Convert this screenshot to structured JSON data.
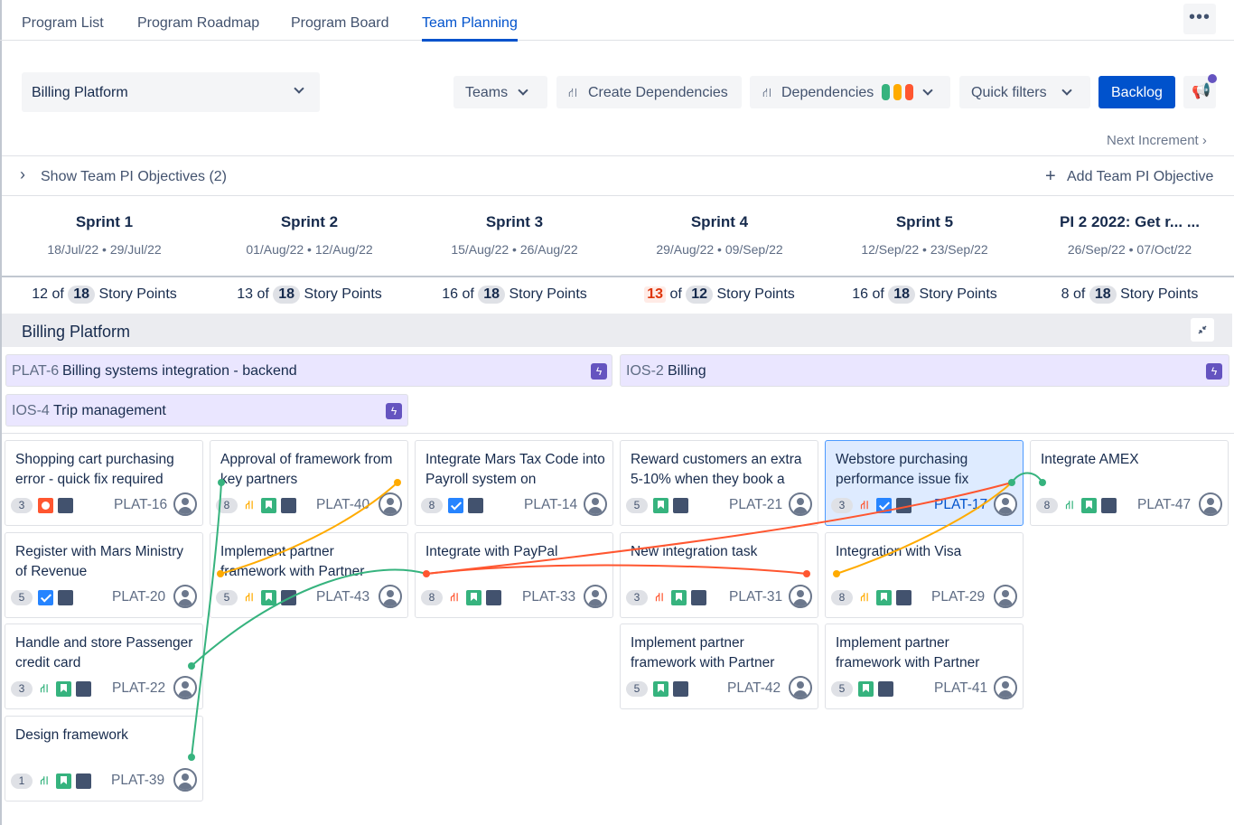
{
  "nav": {
    "tabs": [
      "Program List",
      "Program Roadmap",
      "Program Board",
      "Team Planning"
    ],
    "more": "•••"
  },
  "toolbar": {
    "program_select": "Billing Platform",
    "teams": "Teams",
    "create_dependencies": "Create Dependencies",
    "dependencies": "Dependencies",
    "quick_filters": "Quick filters",
    "backlog": "Backlog"
  },
  "next_increment": "Next Increment",
  "objectives": {
    "show": "Show Team PI Objectives (2)",
    "add": "Add Team PI Objective"
  },
  "sprints": [
    {
      "name": "Sprint 1",
      "dates": "18/Jul/22 • 29/Jul/22",
      "done": "12",
      "total": "18",
      "unit": "Story Points",
      "over": false
    },
    {
      "name": "Sprint 2",
      "dates": "01/Aug/22 • 12/Aug/22",
      "done": "13",
      "total": "18",
      "unit": "Story Points",
      "over": false
    },
    {
      "name": "Sprint 3",
      "dates": "15/Aug/22 • 26/Aug/22",
      "done": "16",
      "total": "18",
      "unit": "Story Points",
      "over": false
    },
    {
      "name": "Sprint 4",
      "dates": "29/Aug/22 • 09/Sep/22",
      "done": "13",
      "total": "12",
      "unit": "Story Points",
      "over": true
    },
    {
      "name": "Sprint 5",
      "dates": "12/Sep/22 • 23/Sep/22",
      "done": "16",
      "total": "18",
      "unit": "Story Points",
      "over": false
    },
    {
      "name": "PI 2 2022: Get r... ...",
      "dates": "26/Sep/22 • 07/Oct/22",
      "done": "8",
      "total": "18",
      "unit": "Story Points",
      "over": false
    }
  ],
  "section_title": "Billing Platform",
  "features": [
    {
      "key": "PLAT-6",
      "title": "Billing systems integration - backend"
    },
    {
      "key": "IOS-2",
      "title": "Billing"
    },
    {
      "key": "IOS-4",
      "title": "Trip management"
    }
  ],
  "cards": [
    {
      "title": "Shopping cart purchasing error - quick fix required",
      "estimate": "3",
      "key": "PLAT-16"
    },
    {
      "title": "Register with Mars Ministry of Revenue",
      "estimate": "5",
      "key": "PLAT-20"
    },
    {
      "title": "Handle and store Passenger credit card",
      "estimate": "3",
      "key": "PLAT-22"
    },
    {
      "title": "Design framework",
      "estimate": "1",
      "key": "PLAT-39"
    },
    {
      "title": "Approval of framework from key partners",
      "estimate": "8",
      "key": "PLAT-40"
    },
    {
      "title": "Implement partner framework with Partner",
      "estimate": "5",
      "key": "PLAT-43"
    },
    {
      "title": "Integrate Mars Tax Code into Payroll system on",
      "estimate": "8",
      "key": "PLAT-14"
    },
    {
      "title": "Integrate with PayPal",
      "estimate": "8",
      "key": "PLAT-33"
    },
    {
      "title": "Reward customers an extra 5-10% when they book a",
      "estimate": "5",
      "key": "PLAT-21"
    },
    {
      "title": "New integration task",
      "estimate": "3",
      "key": "PLAT-31"
    },
    {
      "title": "Implement partner framework with Partner",
      "estimate": "5",
      "key": "PLAT-42"
    },
    {
      "title": "Webstore purchasing performance issue fix",
      "estimate": "3",
      "key": "PLAT-17"
    },
    {
      "title": "Integration with Visa",
      "estimate": "8",
      "key": "PLAT-29"
    },
    {
      "title": "Implement partner framework with Partner",
      "estimate": "5",
      "key": "PLAT-41"
    },
    {
      "title": "Integrate AMEX",
      "estimate": "8",
      "key": "PLAT-47"
    }
  ],
  "colors": {
    "accent": "#0052cc",
    "dep_green": "#36b37e",
    "dep_orange": "#ffab00",
    "dep_red": "#ff5630",
    "feature_bg": "#eae6ff",
    "selected_card": "#deebff"
  }
}
